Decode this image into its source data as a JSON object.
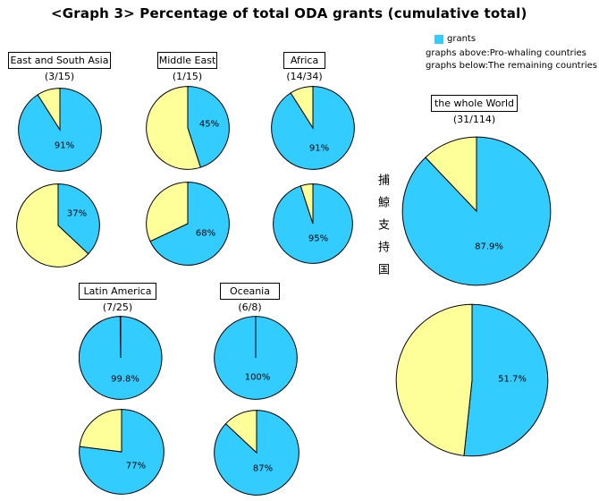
{
  "chart_data": {
    "type": "pie",
    "title": "<Graph 3> Percentage of total ODA grants (cumulative total)",
    "legend": {
      "swatch_label": "grants",
      "note_above": "graphs above:Pro-whaling countries",
      "note_below": "graphs below:The remaining countries"
    },
    "side_label_vertical": "捕鯨支持国",
    "colors": {
      "grants": "#33CCFF",
      "remaining": "#FFFF99",
      "outline": "#000000"
    },
    "layout": {
      "slice_start": "12 o'clock, clockwise",
      "grid": false
    },
    "groups": [
      {
        "name": "East and South Asia",
        "ratio": "(3/15)",
        "above": {
          "grants_pct": 91,
          "label": "91%"
        },
        "below": {
          "grants_pct": 37,
          "label": "37%"
        }
      },
      {
        "name": "Middle East",
        "ratio": "(1/15)",
        "above": {
          "grants_pct": 45,
          "label": "45%"
        },
        "below": {
          "grants_pct": 68,
          "label": "68%"
        }
      },
      {
        "name": "Africa",
        "ratio": "(14/34)",
        "above": {
          "grants_pct": 91,
          "label": "91%"
        },
        "below": {
          "grants_pct": 95,
          "label": "95%"
        }
      },
      {
        "name": "Latin America",
        "ratio": "(7/25)",
        "above": {
          "grants_pct": 99.8,
          "label": "99.8%"
        },
        "below": {
          "grants_pct": 77,
          "label": "77%"
        }
      },
      {
        "name": "Oceania",
        "ratio": "(6/8)",
        "above": {
          "grants_pct": 100,
          "label": "100%"
        },
        "below": {
          "grants_pct": 87,
          "label": "87%"
        }
      },
      {
        "name": "the whole World",
        "ratio": "(31/114)",
        "above": {
          "grants_pct": 87.9,
          "label": "87.9%"
        },
        "below": {
          "grants_pct": 51.7,
          "label": "51.7%"
        }
      }
    ]
  }
}
